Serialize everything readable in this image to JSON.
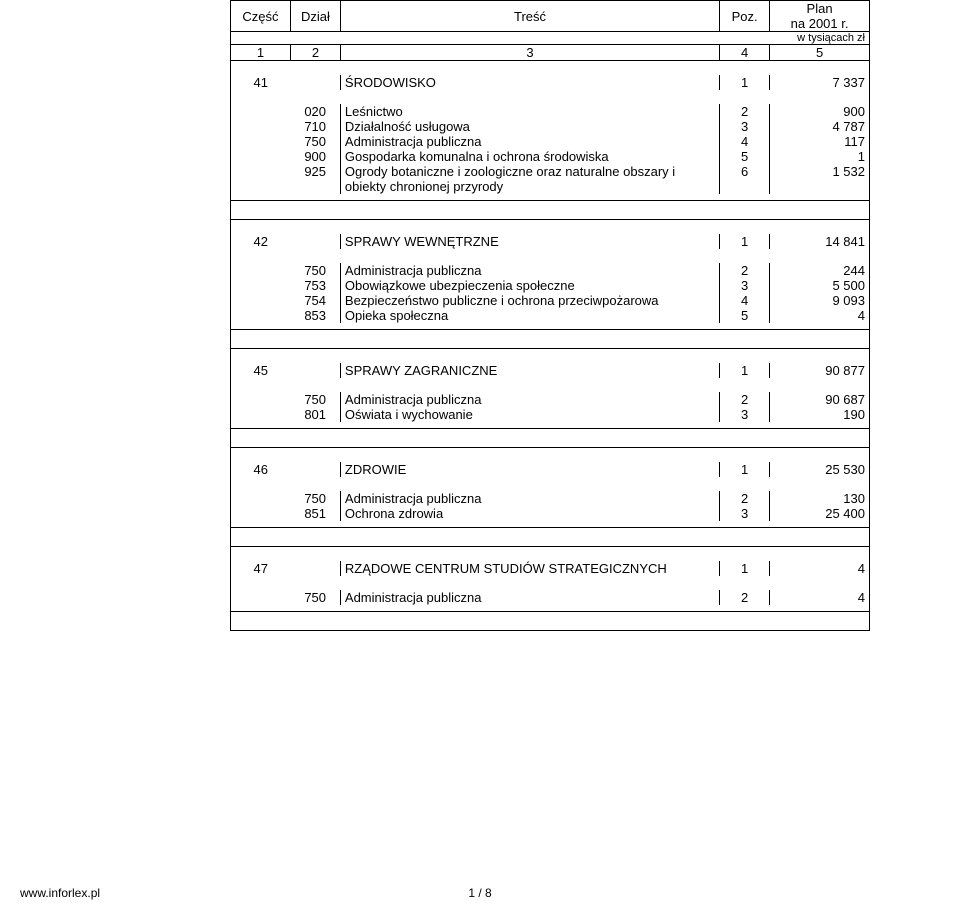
{
  "header": {
    "col1": "Część",
    "col2": "Dział",
    "col3": "Treść",
    "col4": "Poz.",
    "col5_line1": "Plan",
    "col5_line2": "na 2001 r.",
    "unit": "w tysiącach zł",
    "numrow": {
      "c1": "1",
      "c2": "2",
      "c3": "3",
      "c4": "4",
      "c5": "5"
    }
  },
  "sections": [
    {
      "code": "41",
      "title": "ŚRODOWISKO",
      "poz": "1",
      "value": "7 337",
      "rows": [
        {
          "dzial": "020",
          "name": "Leśnictwo",
          "poz": "2",
          "value": "900"
        },
        {
          "dzial": "710",
          "name": "Działalność usługowa",
          "poz": "3",
          "value": "4 787"
        },
        {
          "dzial": "750",
          "name": "Administracja publiczna",
          "poz": "4",
          "value": "117"
        },
        {
          "dzial": "900",
          "name": "Gospodarka komunalna i ochrona środowiska",
          "poz": "5",
          "value": "1"
        },
        {
          "dzial": "925",
          "name": "Ogrody botaniczne i zoologiczne oraz naturalne obszary i obiekty chronionej przyrody",
          "poz": "6",
          "value": "1 532"
        }
      ]
    },
    {
      "code": "42",
      "title": "SPRAWY WEWNĘTRZNE",
      "poz": "1",
      "value": "14 841",
      "rows": [
        {
          "dzial": "750",
          "name": "Administracja publiczna",
          "poz": "2",
          "value": "244"
        },
        {
          "dzial": "753",
          "name": "Obowiązkowe ubezpieczenia społeczne",
          "poz": "3",
          "value": "5 500"
        },
        {
          "dzial": "754",
          "name": "Bezpieczeństwo publiczne i ochrona przeciwpożarowa",
          "poz": "4",
          "value": "9 093"
        },
        {
          "dzial": "853",
          "name": "Opieka społeczna",
          "poz": "5",
          "value": "4"
        }
      ]
    },
    {
      "code": "45",
      "title": "SPRAWY ZAGRANICZNE",
      "poz": "1",
      "value": "90 877",
      "rows": [
        {
          "dzial": "750",
          "name": "Administracja publiczna",
          "poz": "2",
          "value": "90 687"
        },
        {
          "dzial": "801",
          "name": "Oświata i wychowanie",
          "poz": "3",
          "value": "190"
        }
      ]
    },
    {
      "code": "46",
      "title": "ZDROWIE",
      "poz": "1",
      "value": "25 530",
      "rows": [
        {
          "dzial": "750",
          "name": "Administracja publiczna",
          "poz": "2",
          "value": "130"
        },
        {
          "dzial": "851",
          "name": "Ochrona zdrowia",
          "poz": "3",
          "value": "25 400"
        }
      ]
    },
    {
      "code": "47",
      "title": "RZĄDOWE CENTRUM STUDIÓW STRATEGICZNYCH",
      "poz": "1",
      "value": "4",
      "rows": [
        {
          "dzial": "750",
          "name": "Administracja publiczna",
          "poz": "2",
          "value": "4"
        }
      ]
    }
  ],
  "footer": {
    "left": "www.inforlex.pl",
    "center": "1 / 8"
  }
}
